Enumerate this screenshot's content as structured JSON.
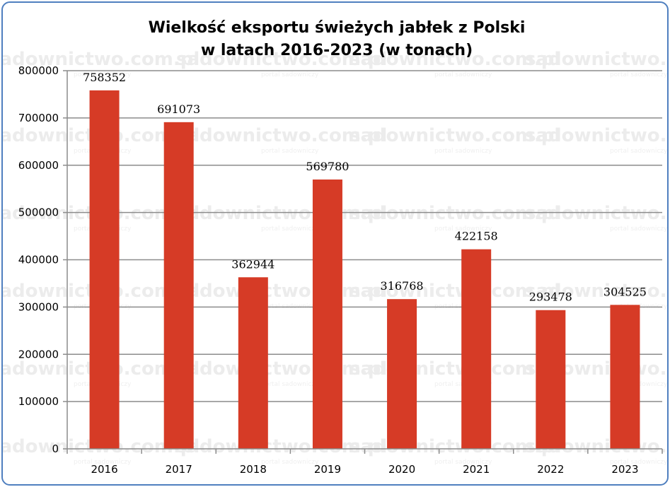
{
  "chart_data": {
    "type": "bar",
    "title_lines": [
      "Wielkość eksportu świeżych jabłek z Polski",
      "w latach 2016-2023 (w tonach)"
    ],
    "categories": [
      "2016",
      "2017",
      "2018",
      "2019",
      "2020",
      "2021",
      "2022",
      "2023"
    ],
    "values": [
      758352,
      691073,
      362944,
      569780,
      316768,
      422158,
      293478,
      304525
    ],
    "data_labels": [
      "758352",
      "691073",
      "362944",
      "569780",
      "316768",
      "422158",
      "293478",
      "304525"
    ],
    "ylim": [
      0,
      800000
    ],
    "yticks": [
      "0",
      "100000",
      "200000",
      "300000",
      "400000",
      "500000",
      "600000",
      "700000",
      "800000"
    ],
    "grid": true,
    "legend": "none",
    "bar_color": "#d63b26",
    "grid_color": "#8c8c8c",
    "frame_color": "#4f7fbf"
  },
  "watermark": {
    "text": "sadownictwo.com.pl",
    "subtext": "portal sadowniczy"
  }
}
